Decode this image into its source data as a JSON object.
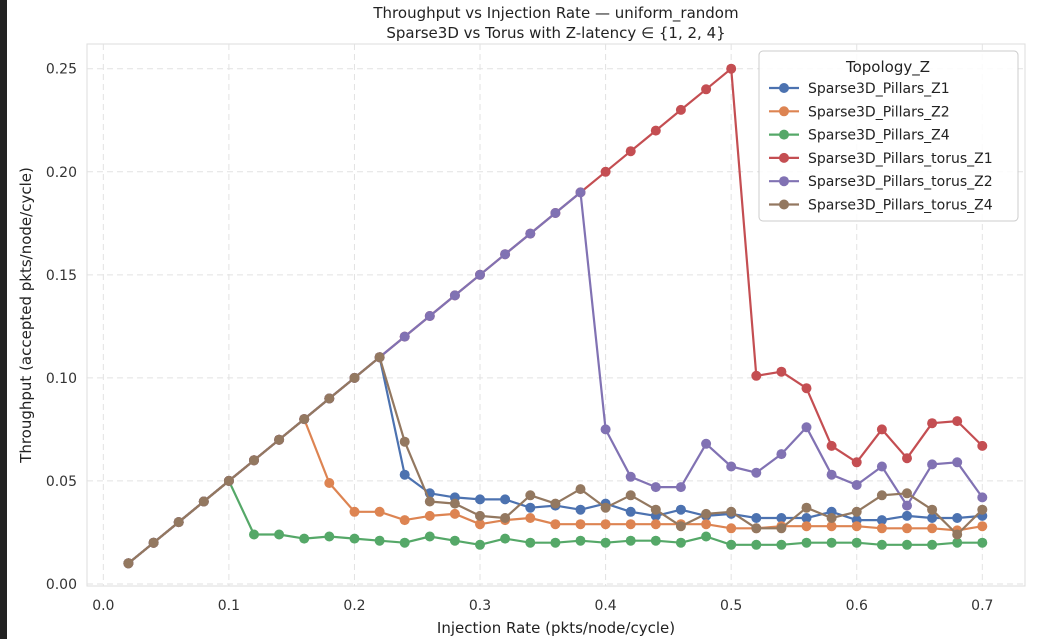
{
  "chart_data": {
    "type": "line",
    "title": "Throughput vs Injection Rate — uniform_random",
    "subtitle": "Sparse3D vs Torus with Z-latency ∈ {1, 2, 4}",
    "xlabel": "Injection Rate (pkts/node/cycle)",
    "ylabel": "Throughput (accepted pkts/node/cycle)",
    "xlim": [
      -0.013,
      0.734
    ],
    "ylim": [
      -0.001,
      0.262
    ],
    "xticks": [
      "0.0",
      "0.1",
      "0.2",
      "0.3",
      "0.4",
      "0.5",
      "0.6",
      "0.7"
    ],
    "yticks": [
      "0.00",
      "0.05",
      "0.10",
      "0.15",
      "0.20",
      "0.25"
    ],
    "grid": true,
    "legend": {
      "title": "Topology_Z",
      "position": "top-right"
    },
    "x": [
      0.02,
      0.04,
      0.06,
      0.08,
      0.1,
      0.12,
      0.14,
      0.16,
      0.18,
      0.2,
      0.22,
      0.24,
      0.26,
      0.28,
      0.3,
      0.32,
      0.34,
      0.36,
      0.38,
      0.4,
      0.42,
      0.44,
      0.46,
      0.48,
      0.5,
      0.52,
      0.54,
      0.56,
      0.58,
      0.6,
      0.62,
      0.64,
      0.66,
      0.68,
      0.7
    ],
    "series": [
      {
        "name": "Sparse3D_Pillars_Z1",
        "color": "#4c72b0",
        "values": [
          0.01,
          0.02,
          0.03,
          0.04,
          0.05,
          0.06,
          0.07,
          0.08,
          0.09,
          0.1,
          0.11,
          0.053,
          0.044,
          0.042,
          0.041,
          0.041,
          0.037,
          0.038,
          0.036,
          0.039,
          0.035,
          0.033,
          0.036,
          0.033,
          0.034,
          0.032,
          0.032,
          0.032,
          0.035,
          0.031,
          0.031,
          0.033,
          0.032,
          0.032,
          0.033
        ]
      },
      {
        "name": "Sparse3D_Pillars_Z2",
        "color": "#dd8452",
        "values": [
          0.01,
          0.02,
          0.03,
          0.04,
          0.05,
          0.06,
          0.07,
          0.08,
          0.049,
          0.035,
          0.035,
          0.031,
          0.033,
          0.034,
          0.029,
          0.031,
          0.032,
          0.029,
          0.029,
          0.029,
          0.029,
          0.029,
          0.029,
          0.029,
          0.027,
          0.027,
          0.028,
          0.028,
          0.028,
          0.028,
          0.027,
          0.027,
          0.027,
          0.026,
          0.028
        ]
      },
      {
        "name": "Sparse3D_Pillars_Z4",
        "color": "#55a868",
        "values": [
          0.01,
          0.02,
          0.03,
          0.04,
          0.05,
          0.024,
          0.024,
          0.022,
          0.023,
          0.022,
          0.021,
          0.02,
          0.023,
          0.021,
          0.019,
          0.022,
          0.02,
          0.02,
          0.021,
          0.02,
          0.021,
          0.021,
          0.02,
          0.023,
          0.019,
          0.019,
          0.019,
          0.02,
          0.02,
          0.02,
          0.019,
          0.019,
          0.019,
          0.02,
          0.02
        ]
      },
      {
        "name": "Sparse3D_Pillars_torus_Z1",
        "color": "#c44e52",
        "values": [
          0.01,
          0.02,
          0.03,
          0.04,
          0.05,
          0.06,
          0.07,
          0.08,
          0.09,
          0.1,
          0.11,
          0.12,
          0.13,
          0.14,
          0.15,
          0.16,
          0.17,
          0.18,
          0.19,
          0.2,
          0.21,
          0.22,
          0.23,
          0.24,
          0.25,
          0.101,
          0.103,
          0.095,
          0.067,
          0.059,
          0.075,
          0.061,
          0.078,
          0.079,
          0.067
        ]
      },
      {
        "name": "Sparse3D_Pillars_torus_Z2",
        "color": "#8172b3",
        "values": [
          0.01,
          0.02,
          0.03,
          0.04,
          0.05,
          0.06,
          0.07,
          0.08,
          0.09,
          0.1,
          0.11,
          0.12,
          0.13,
          0.14,
          0.15,
          0.16,
          0.17,
          0.18,
          0.19,
          0.075,
          0.052,
          0.047,
          0.047,
          0.068,
          0.057,
          0.054,
          0.063,
          0.076,
          0.053,
          0.048,
          0.057,
          0.038,
          0.058,
          0.059,
          0.042
        ]
      },
      {
        "name": "Sparse3D_Pillars_torus_Z4",
        "color": "#937860",
        "values": [
          0.01,
          0.02,
          0.03,
          0.04,
          0.05,
          0.06,
          0.07,
          0.08,
          0.09,
          0.1,
          0.11,
          0.069,
          0.04,
          0.039,
          0.033,
          0.032,
          0.043,
          0.039,
          0.046,
          0.037,
          0.043,
          0.036,
          0.028,
          0.034,
          0.035,
          0.027,
          0.027,
          0.037,
          0.032,
          0.035,
          0.043,
          0.044,
          0.036,
          0.024,
          0.036
        ]
      }
    ]
  }
}
